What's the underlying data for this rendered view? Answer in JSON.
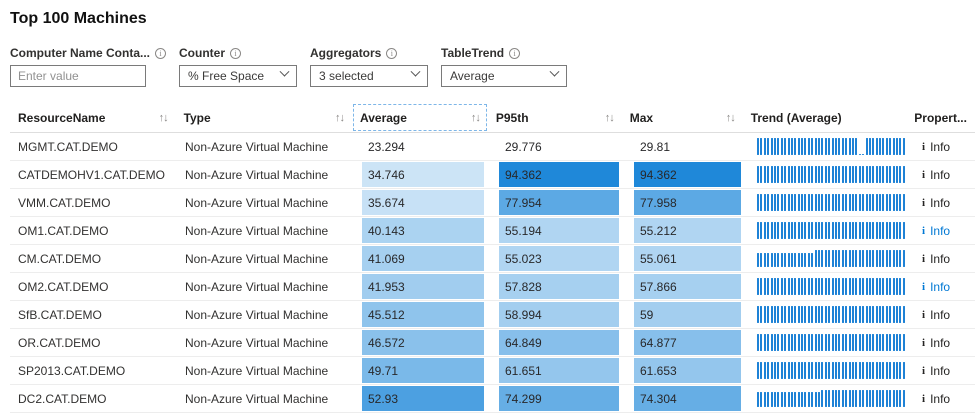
{
  "title": "Top 100 Machines",
  "colors": {
    "accent": "#0078d4",
    "heat_base_rgb": "0,120,212",
    "trend_bar": "#1e82d6",
    "info_link_highlight": "#0078d4"
  },
  "icons": {
    "sort": "↑↓",
    "chevron_down": "chevron-down",
    "filter_info": "i",
    "row_info": "i"
  },
  "filters": {
    "computer_name": {
      "label": "Computer Name Conta...",
      "placeholder": "Enter value"
    },
    "counter": {
      "label": "Counter",
      "value": "% Free Space"
    },
    "aggregators": {
      "label": "Aggregators",
      "value": "3 selected"
    },
    "table_trend": {
      "label": "TableTrend",
      "value": "Average"
    }
  },
  "table": {
    "headers": {
      "resource": "ResourceName",
      "type": "Type",
      "average": "Average",
      "p95": "P95th",
      "max": "Max",
      "trend": "Trend (Average)",
      "properties": "Propert..."
    },
    "info_label": "Info",
    "rows": [
      {
        "name": "MGMT.CAT.DEMO",
        "type": "Non-Azure Virtual Machine",
        "average": "23.294",
        "p95": "29.776",
        "max": "29.81",
        "heat": [
          0,
          0,
          0
        ],
        "info_blue": false,
        "trend": [
          [
            30,
            1
          ],
          [
            1,
            0.08
          ],
          [
            1,
            0.06
          ],
          [
            12,
            1
          ]
        ]
      },
      {
        "name": "CATDEMOHV1.CAT.DEMO",
        "type": "Non-Azure Virtual Machine",
        "average": "34.746",
        "p95": "94.362",
        "max": "94.362",
        "heat": [
          0.2,
          0.88,
          0.88
        ],
        "info_blue": false,
        "trend": [
          [
            44,
            1
          ]
        ]
      },
      {
        "name": "VMM.CAT.DEMO",
        "type": "Non-Azure Virtual Machine",
        "average": "35.674",
        "p95": "77.954",
        "max": "77.958",
        "heat": [
          0.22,
          0.64,
          0.64
        ],
        "info_blue": false,
        "trend": [
          [
            44,
            1
          ]
        ]
      },
      {
        "name": "OM1.CAT.DEMO",
        "type": "Non-Azure Virtual Machine",
        "average": "40.143",
        "p95": "55.194",
        "max": "55.212",
        "heat": [
          0.33,
          0.31,
          0.31
        ],
        "info_blue": true,
        "trend": [
          [
            44,
            1
          ]
        ]
      },
      {
        "name": "CM.CAT.DEMO",
        "type": "Non-Azure Virtual Machine",
        "average": "41.069",
        "p95": "55.023",
        "max": "55.061",
        "heat": [
          0.35,
          0.31,
          0.31
        ],
        "info_blue": false,
        "trend": [
          [
            17,
            0.85
          ],
          [
            27,
            1
          ]
        ]
      },
      {
        "name": "OM2.CAT.DEMO",
        "type": "Non-Azure Virtual Machine",
        "average": "41.953",
        "p95": "57.828",
        "max": "57.866",
        "heat": [
          0.37,
          0.35,
          0.35
        ],
        "info_blue": true,
        "trend": [
          [
            44,
            1
          ]
        ]
      },
      {
        "name": "SfB.CAT.DEMO",
        "type": "Non-Azure Virtual Machine",
        "average": "45.512",
        "p95": "58.994",
        "max": "59",
        "heat": [
          0.44,
          0.36,
          0.36
        ],
        "info_blue": false,
        "trend": [
          [
            44,
            1
          ]
        ]
      },
      {
        "name": "OR.CAT.DEMO",
        "type": "Non-Azure Virtual Machine",
        "average": "46.572",
        "p95": "64.849",
        "max": "64.877",
        "heat": [
          0.46,
          0.47,
          0.47
        ],
        "info_blue": false,
        "trend": [
          [
            44,
            1
          ]
        ]
      },
      {
        "name": "SP2013.CAT.DEMO",
        "type": "Non-Azure Virtual Machine",
        "average": "49.71",
        "p95": "61.651",
        "max": "61.653",
        "heat": [
          0.52,
          0.42,
          0.42
        ],
        "info_blue": false,
        "trend": [
          [
            44,
            1
          ]
        ]
      },
      {
        "name": "DC2.CAT.DEMO",
        "type": "Non-Azure Virtual Machine",
        "average": "52.93",
        "p95": "74.299",
        "max": "74.304",
        "heat": [
          0.7,
          0.6,
          0.6
        ],
        "info_blue": false,
        "trend": [
          [
            19,
            0.86
          ],
          [
            25,
            1
          ]
        ]
      }
    ]
  }
}
